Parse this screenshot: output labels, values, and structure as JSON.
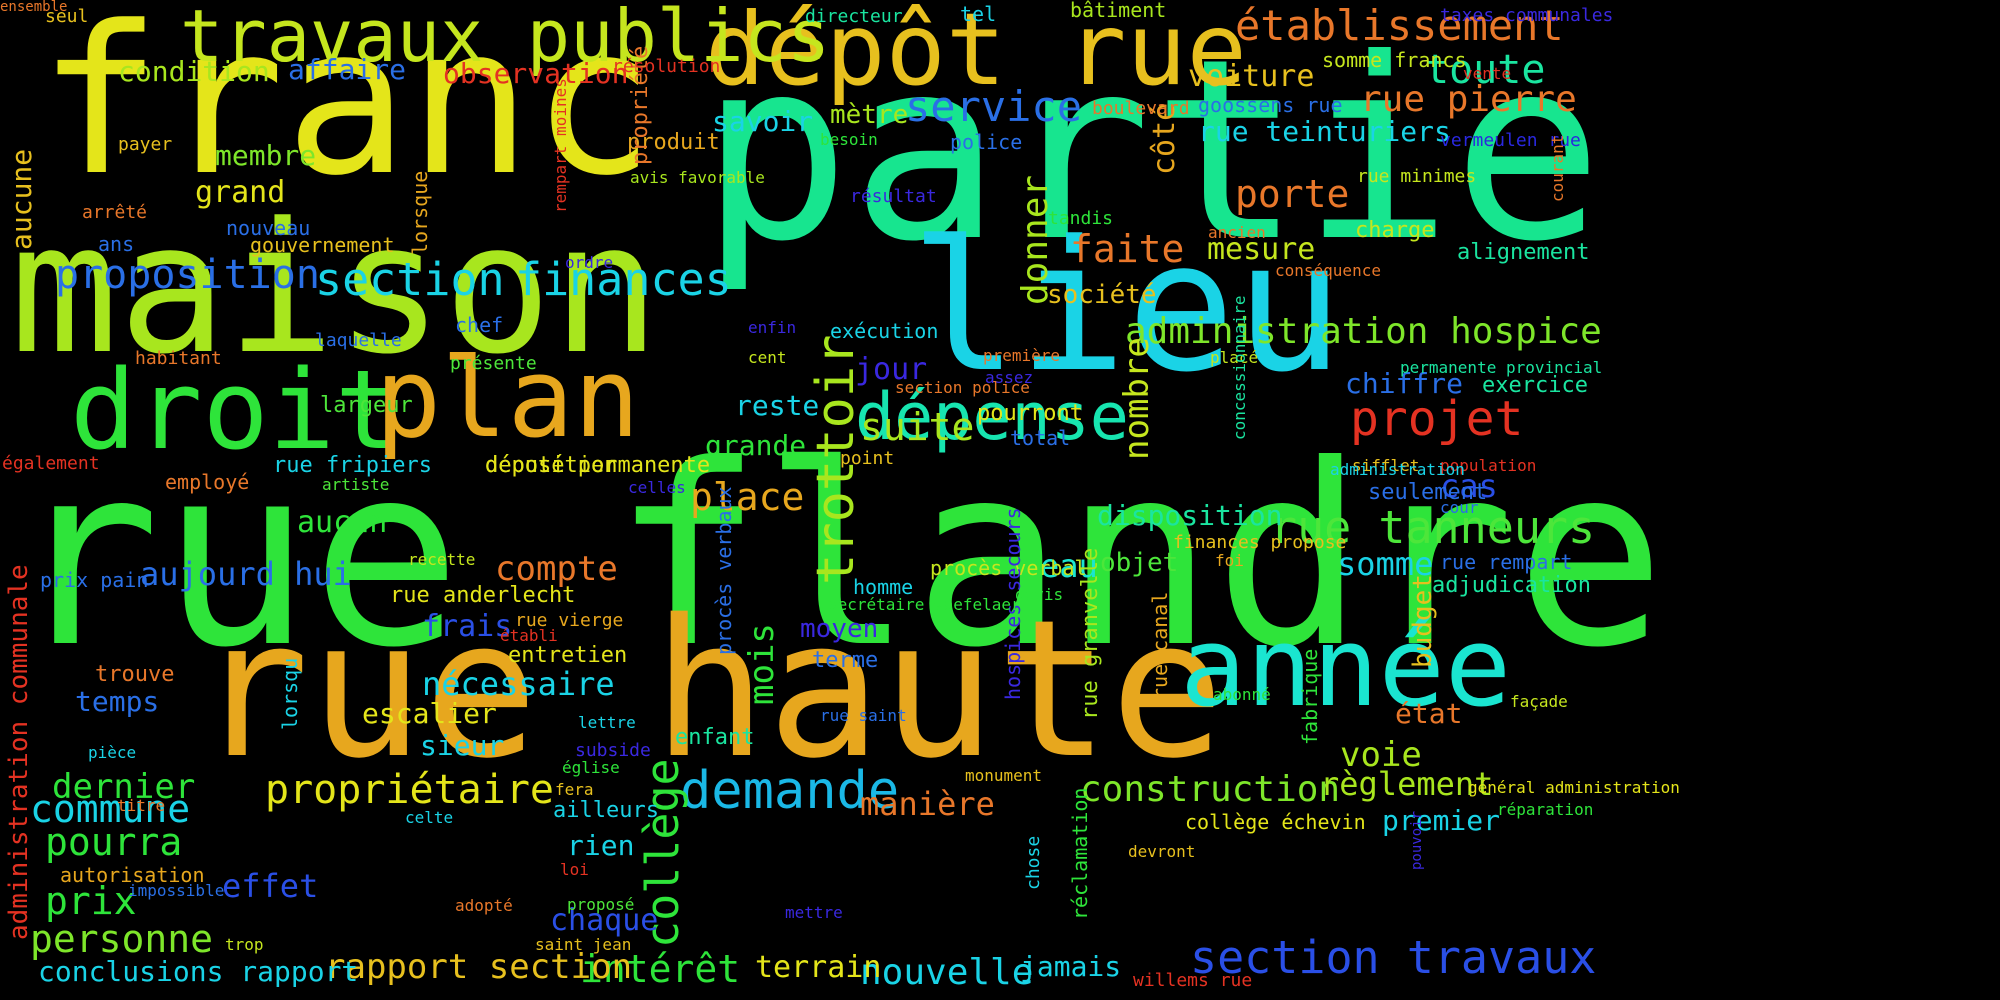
{
  "colors": {
    "background": "#000000",
    "palette": [
      "#e4e51a",
      "#a8e61e",
      "#2ee43a",
      "#17e58f",
      "#1ad3e6",
      "#2a6fe6",
      "#3a28e0",
      "#e43222",
      "#e8772a",
      "#e7a71e"
    ]
  },
  "words": [
    {
      "text": "rue flandre",
      "color": "#2ee43a"
    },
    {
      "text": "partie",
      "color": "#17e58f"
    },
    {
      "text": "maison",
      "color": "#a8e61e"
    },
    {
      "text": "franc",
      "color": "#e4e51a"
    },
    {
      "text": "rue haute",
      "color": "#e7a71e"
    },
    {
      "text": "lieu",
      "color": "#1ad3e6"
    },
    {
      "text": "dépôt rue",
      "color": "#e7c01e"
    },
    {
      "text": "travaux publics",
      "color": "#c5e61e"
    },
    {
      "text": "droit",
      "color": "#2ee43a"
    },
    {
      "text": "plan",
      "color": "#e7a71e"
    },
    {
      "text": "année",
      "color": "#1ae5d0"
    },
    {
      "text": "dépense",
      "color": "#17e5b0"
    },
    {
      "text": "établissement",
      "color": "#e8772a"
    },
    {
      "text": "section travaux",
      "color": "#2a4fe6"
    },
    {
      "text": "rue tanneurs",
      "color": "#4de63a"
    },
    {
      "text": "demande",
      "color": "#1ab8e6"
    },
    {
      "text": "projet",
      "color": "#e43222"
    },
    {
      "text": "finances",
      "color": "#1ad3e6"
    },
    {
      "text": "section",
      "color": "#1ad3e6"
    },
    {
      "text": "service",
      "color": "#2a6fe6"
    },
    {
      "text": "administration hospice",
      "color": "#7ee62a"
    },
    {
      "text": "collège",
      "color": "#2ee43a"
    },
    {
      "text": "trottoir",
      "color": "#a8e61e"
    },
    {
      "text": "construction",
      "color": "#7ee62a"
    },
    {
      "text": "suite",
      "color": "#a8e61e"
    },
    {
      "text": "compte",
      "color": "#e8772a"
    },
    {
      "text": "propriétaire",
      "color": "#e4e51a"
    },
    {
      "text": "rue pierre",
      "color": "#e8772a"
    },
    {
      "text": "toute",
      "color": "#1ae5a0"
    },
    {
      "text": "commune",
      "color": "#1ad3e6"
    },
    {
      "text": "pourra",
      "color": "#2ee43a"
    },
    {
      "text": "personne",
      "color": "#7ee62a"
    },
    {
      "text": "proposition",
      "color": "#2a6fe6"
    },
    {
      "text": "aujourd hui",
      "color": "#2a6fe6"
    },
    {
      "text": "place",
      "color": "#e7a71e"
    },
    {
      "text": "nécessaire",
      "color": "#1ad3e6"
    },
    {
      "text": "porte",
      "color": "#e8772a"
    },
    {
      "text": "faite",
      "color": "#e8772a"
    },
    {
      "text": "voie",
      "color": "#a8e61e"
    },
    {
      "text": "règlement",
      "color": "#a8e61e"
    },
    {
      "text": "mois",
      "color": "#2ee43a"
    },
    {
      "text": "donner",
      "color": "#a8e61e"
    },
    {
      "text": "nombre",
      "color": "#c5e61e"
    },
    {
      "text": "somme",
      "color": "#1ad3e6"
    },
    {
      "text": "manière",
      "color": "#e8772a"
    },
    {
      "text": "intérêt",
      "color": "#2ee43a"
    },
    {
      "text": "nouvelle",
      "color": "#1ad3e6"
    },
    {
      "text": "rapport section",
      "color": "#e7c01e"
    },
    {
      "text": "conclusions rapport",
      "color": "#1ad3e6"
    },
    {
      "text": "dernier",
      "color": "#2ee43a"
    },
    {
      "text": "prix",
      "color": "#2ee43a"
    },
    {
      "text": "effet",
      "color": "#2a4fe6"
    },
    {
      "text": "chaque",
      "color": "#2a4fe6"
    },
    {
      "text": "frais",
      "color": "#2a4fe6"
    },
    {
      "text": "eau",
      "color": "#1ae5d0"
    },
    {
      "text": "objet",
      "color": "#4de63a"
    },
    {
      "text": "cas",
      "color": "#2a4fe6"
    },
    {
      "text": "chiffre",
      "color": "#2a6fe6"
    },
    {
      "text": "jour",
      "color": "#3a28e0"
    },
    {
      "text": "aucun",
      "color": "#2ee43a"
    },
    {
      "text": "escalier",
      "color": "#e4e51a"
    },
    {
      "text": "voiture",
      "color": "#e7c01e"
    },
    {
      "text": "mesure",
      "color": "#c5e61e"
    },
    {
      "text": "membre",
      "color": "#7ee62a"
    },
    {
      "text": "grand",
      "color": "#e4e51a"
    },
    {
      "text": "condition",
      "color": "#a8e61e"
    },
    {
      "text": "affaire",
      "color": "#2a6fe6"
    },
    {
      "text": "observation",
      "color": "#e43222"
    },
    {
      "text": "rue teinturiers",
      "color": "#1ad3e6"
    },
    {
      "text": "savoir",
      "color": "#1ad3e6"
    },
    {
      "text": "mètre",
      "color": "#a8e61e"
    },
    {
      "text": "côté",
      "color": "#e7a71e"
    },
    {
      "text": "société",
      "color": "#e7c01e"
    },
    {
      "text": "exécution",
      "color": "#1ad3e6"
    },
    {
      "text": "reste",
      "color": "#1ad3e6"
    },
    {
      "text": "grande",
      "color": "#2ee43a"
    },
    {
      "text": "disposition",
      "color": "#1ae5a0"
    },
    {
      "text": "alignement",
      "color": "#1ae5a0"
    },
    {
      "text": "exercice",
      "color": "#1ae5a0"
    },
    {
      "text": "moyen",
      "color": "#3a28e0"
    },
    {
      "text": "sieur",
      "color": "#1ad3e6"
    },
    {
      "text": "rien",
      "color": "#1ad3e6"
    },
    {
      "text": "premier",
      "color": "#1ad3e6"
    },
    {
      "text": "terrain",
      "color": "#e4e51a"
    },
    {
      "text": "jamais",
      "color": "#1ad3e6"
    },
    {
      "text": "budget",
      "color": "#e7c01e"
    },
    {
      "text": "état",
      "color": "#e8772a"
    },
    {
      "text": "temps",
      "color": "#2a6fe6"
    },
    {
      "text": "largeur",
      "color": "#4de63a"
    },
    {
      "text": "aucune",
      "color": "#e7c01e"
    },
    {
      "text": "administration communale",
      "color": "#e43222"
    },
    {
      "text": "produit",
      "color": "#e7a71e"
    },
    {
      "text": "entretien",
      "color": "#e4e51a"
    },
    {
      "text": "pourront",
      "color": "#e4e51a"
    },
    {
      "text": "charge",
      "color": "#c5e61e"
    },
    {
      "text": "seulement",
      "color": "#2a6fe6"
    },
    {
      "text": "adjudication",
      "color": "#1ae5a0"
    },
    {
      "text": "rue rempart",
      "color": "#2a6fe6"
    },
    {
      "text": "police",
      "color": "#2a6fe6"
    },
    {
      "text": "total",
      "color": "#2a6fe6"
    },
    {
      "text": "enfant",
      "color": "#1ae5a0"
    },
    {
      "text": "ailleurs",
      "color": "#1ad3e6"
    },
    {
      "text": "prix pain",
      "color": "#2a6fe6"
    },
    {
      "text": "rue fripiers",
      "color": "#1ad3e6"
    },
    {
      "text": "autorisation",
      "color": "#e7a71e"
    },
    {
      "text": "trouve",
      "color": "#e8772a"
    },
    {
      "text": "nouveau",
      "color": "#2a6fe6"
    },
    {
      "text": "chef",
      "color": "#2a6fe6"
    },
    {
      "text": "député permanente",
      "color": "#e4e51a"
    },
    {
      "text": "déposition",
      "color": "#e4e51a"
    },
    {
      "text": "rue anderlecht",
      "color": "#e4e51a"
    },
    {
      "text": "collège échevin",
      "color": "#e4e51a"
    },
    {
      "text": "procès verbal",
      "color": "#c5e61e"
    },
    {
      "text": "homme",
      "color": "#1ad3e6"
    },
    {
      "text": "terme",
      "color": "#2a6fe6"
    },
    {
      "text": "propriété",
      "color": "#e8772a"
    },
    {
      "text": "rue granvelle",
      "color": "#a8e61e"
    },
    {
      "text": "rue canal",
      "color": "#e7a71e"
    },
    {
      "text": "fabrique",
      "color": "#2ee43a"
    },
    {
      "text": "hospices secours",
      "color": "#3a28e0"
    },
    {
      "text": "procès verbaux",
      "color": "#2a6fe6"
    },
    {
      "text": "réclamation",
      "color": "#2ee43a"
    },
    {
      "text": "chose",
      "color": "#1ad3e6"
    },
    {
      "text": "lorsqu",
      "color": "#1ad3e6"
    },
    {
      "text": "lorsque",
      "color": "#e7a71e"
    },
    {
      "text": "rempart moines",
      "color": "#e43222"
    },
    {
      "text": "gouvernement",
      "color": "#e7c01e"
    },
    {
      "text": "ans",
      "color": "#2a6fe6"
    },
    {
      "text": "arrêté",
      "color": "#e8772a"
    },
    {
      "text": "payer",
      "color": "#e7c01e"
    },
    {
      "text": "seul",
      "color": "#e7c01e"
    },
    {
      "text": "résolution",
      "color": "#e43222"
    },
    {
      "text": "directeur",
      "color": "#1ae5a0"
    },
    {
      "text": "tel",
      "color": "#1ad3e6"
    },
    {
      "text": "bâtiment",
      "color": "#a8e61e"
    },
    {
      "text": "taxes communales",
      "color": "#3a28e0"
    },
    {
      "text": "somme francs",
      "color": "#c5e61e"
    },
    {
      "text": "goossens rue",
      "color": "#2a6fe6"
    },
    {
      "text": "boulevard",
      "color": "#e8772a"
    },
    {
      "text": "besoin",
      "color": "#2ee43a"
    },
    {
      "text": "vermeulen rue",
      "color": "#2a28e0"
    },
    {
      "text": "avis favorable",
      "color": "#a8e61e"
    },
    {
      "text": "résultat",
      "color": "#3a28e0"
    },
    {
      "text": "tandis",
      "color": "#2ee43a"
    },
    {
      "text": "rue minimes",
      "color": "#c5e61e"
    },
    {
      "text": "courant",
      "color": "#e8772a"
    },
    {
      "text": "ancien",
      "color": "#e8772a"
    },
    {
      "text": "conséquence",
      "color": "#e8772a"
    },
    {
      "text": "ordre",
      "color": "#3a28e0"
    },
    {
      "text": "enfin",
      "color": "#3a28e0"
    },
    {
      "text": "laquelle",
      "color": "#2a6fe6"
    },
    {
      "text": "habitant",
      "color": "#e8772a"
    },
    {
      "text": "présente",
      "color": "#4de63a"
    },
    {
      "text": "cent",
      "color": "#c5e61e"
    },
    {
      "text": "première",
      "color": "#e8772a"
    },
    {
      "text": "section police",
      "color": "#e8772a"
    },
    {
      "text": "assez",
      "color": "#3a28e0"
    },
    {
      "text": "placé",
      "color": "#c5e61e"
    },
    {
      "text": "permanente provincial",
      "color": "#1ae5a0"
    },
    {
      "text": "concessionnaire",
      "color": "#1ae5a0"
    },
    {
      "text": "point",
      "color": "#e7c01e"
    },
    {
      "text": "également",
      "color": "#e43222"
    },
    {
      "text": "employé",
      "color": "#e8772a"
    },
    {
      "text": "artiste",
      "color": "#4de63a"
    },
    {
      "text": "celles",
      "color": "#3a28e0"
    },
    {
      "text": "sifflet",
      "color": "#e7c01e"
    },
    {
      "text": "population",
      "color": "#e43222"
    },
    {
      "text": "administration",
      "color": "#1ad3e6"
    },
    {
      "text": "cour",
      "color": "#2a6fe6"
    },
    {
      "text": "finances propose",
      "color": "#e7c01e"
    },
    {
      "text": "foi",
      "color": "#e7a71e"
    },
    {
      "text": "devis",
      "color": "#2ee43a"
    },
    {
      "text": "secrétaire waefelaer",
      "color": "#2ee43a"
    },
    {
      "text": "recette",
      "color": "#c5e61e"
    },
    {
      "text": "rue vierge",
      "color": "#e7a71e"
    },
    {
      "text": "établi",
      "color": "#e43222"
    },
    {
      "text": "rue saint",
      "color": "#2a6fe6"
    },
    {
      "text": "abonné",
      "color": "#2ee43a"
    },
    {
      "text": "façade",
      "color": "#c5e61e"
    },
    {
      "text": "lettre",
      "color": "#1ad3e6"
    },
    {
      "text": "église",
      "color": "#2ee43a"
    },
    {
      "text": "subside",
      "color": "#3a28e0"
    },
    {
      "text": "fera",
      "color": "#e7c01e"
    },
    {
      "text": "celte",
      "color": "#1ad3e6"
    },
    {
      "text": "titre",
      "color": "#e8772a"
    },
    {
      "text": "pièce",
      "color": "#1ad3e6"
    },
    {
      "text": "monument",
      "color": "#e7c01e"
    },
    {
      "text": "général administration",
      "color": "#e4e51a"
    },
    {
      "text": "réparation",
      "color": "#2ee43a"
    },
    {
      "text": "pouvoir",
      "color": "#3a28e0"
    },
    {
      "text": "devront",
      "color": "#e7c01e"
    },
    {
      "text": "loi",
      "color": "#e43222"
    },
    {
      "text": "impossible",
      "color": "#2a6fe6"
    },
    {
      "text": "adopté",
      "color": "#e8772a"
    },
    {
      "text": "proposé",
      "color": "#4de63a"
    },
    {
      "text": "mettre",
      "color": "#3a28e0"
    },
    {
      "text": "trop",
      "color": "#c5e61e"
    },
    {
      "text": "saint jean",
      "color": "#e7c01e"
    },
    {
      "text": "willems rue",
      "color": "#e43222"
    },
    {
      "text": "vente",
      "color": "#e43222"
    },
    {
      "text": "ensemble",
      "color": "#e8772a"
    }
  ]
}
